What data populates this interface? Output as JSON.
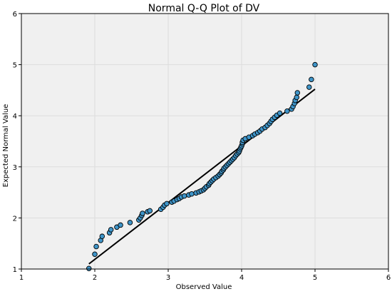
{
  "chart_data": {
    "type": "scatter",
    "title": "Normal Q-Q Plot of DV",
    "xlabel": "Observed Value",
    "ylabel": "Expected Normal Value",
    "xlim": [
      1,
      6
    ],
    "ylim": [
      1,
      6
    ],
    "xticks": [
      "1",
      "2",
      "3",
      "4",
      "5",
      "6"
    ],
    "yticks": [
      "1",
      "2",
      "3",
      "4",
      "5",
      "6"
    ],
    "grid": true,
    "colors": {
      "point_fill": "#3f95c9",
      "point_edge": "#000000",
      "line": "#000000",
      "plot_background": "#f0f0f0",
      "grid": "#dddddd"
    },
    "reference_line": {
      "x": [
        1.92,
        5.0
      ],
      "y": [
        1.1,
        4.52
      ]
    },
    "points": [
      [
        1.92,
        1.01
      ],
      [
        2.0,
        1.29
      ],
      [
        2.02,
        1.44
      ],
      [
        2.08,
        1.56
      ],
      [
        2.1,
        1.64
      ],
      [
        2.2,
        1.71
      ],
      [
        2.22,
        1.77
      ],
      [
        2.3,
        1.82
      ],
      [
        2.35,
        1.86
      ],
      [
        2.48,
        1.91
      ],
      [
        2.6,
        1.96
      ],
      [
        2.62,
        2.0
      ],
      [
        2.64,
        2.05
      ],
      [
        2.65,
        2.09
      ],
      [
        2.72,
        2.12
      ],
      [
        2.75,
        2.14
      ],
      [
        2.9,
        2.17
      ],
      [
        2.93,
        2.21
      ],
      [
        2.95,
        2.25
      ],
      [
        2.98,
        2.28
      ],
      [
        3.05,
        2.31
      ],
      [
        3.08,
        2.33
      ],
      [
        3.12,
        2.36
      ],
      [
        3.15,
        2.38
      ],
      [
        3.18,
        2.41
      ],
      [
        3.22,
        2.43
      ],
      [
        3.28,
        2.45
      ],
      [
        3.32,
        2.47
      ],
      [
        3.38,
        2.49
      ],
      [
        3.42,
        2.51
      ],
      [
        3.45,
        2.53
      ],
      [
        3.48,
        2.55
      ],
      [
        3.5,
        2.58
      ],
      [
        3.52,
        2.61
      ],
      [
        3.55,
        2.64
      ],
      [
        3.56,
        2.67
      ],
      [
        3.58,
        2.7
      ],
      [
        3.6,
        2.73
      ],
      [
        3.62,
        2.76
      ],
      [
        3.65,
        2.79
      ],
      [
        3.68,
        2.82
      ],
      [
        3.7,
        2.85
      ],
      [
        3.72,
        2.88
      ],
      [
        3.73,
        2.91
      ],
      [
        3.75,
        2.94
      ],
      [
        3.76,
        2.97
      ],
      [
        3.78,
        3.0
      ],
      [
        3.8,
        3.03
      ],
      [
        3.82,
        3.06
      ],
      [
        3.84,
        3.09
      ],
      [
        3.86,
        3.12
      ],
      [
        3.88,
        3.15
      ],
      [
        3.9,
        3.18
      ],
      [
        3.92,
        3.22
      ],
      [
        3.94,
        3.25
      ],
      [
        3.96,
        3.28
      ],
      [
        3.97,
        3.31
      ],
      [
        3.98,
        3.35
      ],
      [
        3.99,
        3.38
      ],
      [
        4.0,
        3.41
      ],
      [
        4.01,
        3.45
      ],
      [
        4.01,
        3.48
      ],
      [
        4.02,
        3.52
      ],
      [
        4.05,
        3.55
      ],
      [
        4.1,
        3.58
      ],
      [
        4.15,
        3.61
      ],
      [
        4.18,
        3.64
      ],
      [
        4.22,
        3.67
      ],
      [
        4.25,
        3.7
      ],
      [
        4.28,
        3.74
      ],
      [
        4.32,
        3.77
      ],
      [
        4.35,
        3.81
      ],
      [
        4.38,
        3.85
      ],
      [
        4.4,
        3.89
      ],
      [
        4.42,
        3.93
      ],
      [
        4.45,
        3.97
      ],
      [
        4.48,
        4.01
      ],
      [
        4.52,
        4.05
      ],
      [
        4.62,
        4.09
      ],
      [
        4.68,
        4.13
      ],
      [
        4.7,
        4.18
      ],
      [
        4.72,
        4.24
      ],
      [
        4.73,
        4.3
      ],
      [
        4.75,
        4.36
      ],
      [
        4.76,
        4.45
      ],
      [
        4.92,
        4.56
      ],
      [
        4.95,
        4.71
      ],
      [
        5.0,
        5.0
      ]
    ]
  }
}
